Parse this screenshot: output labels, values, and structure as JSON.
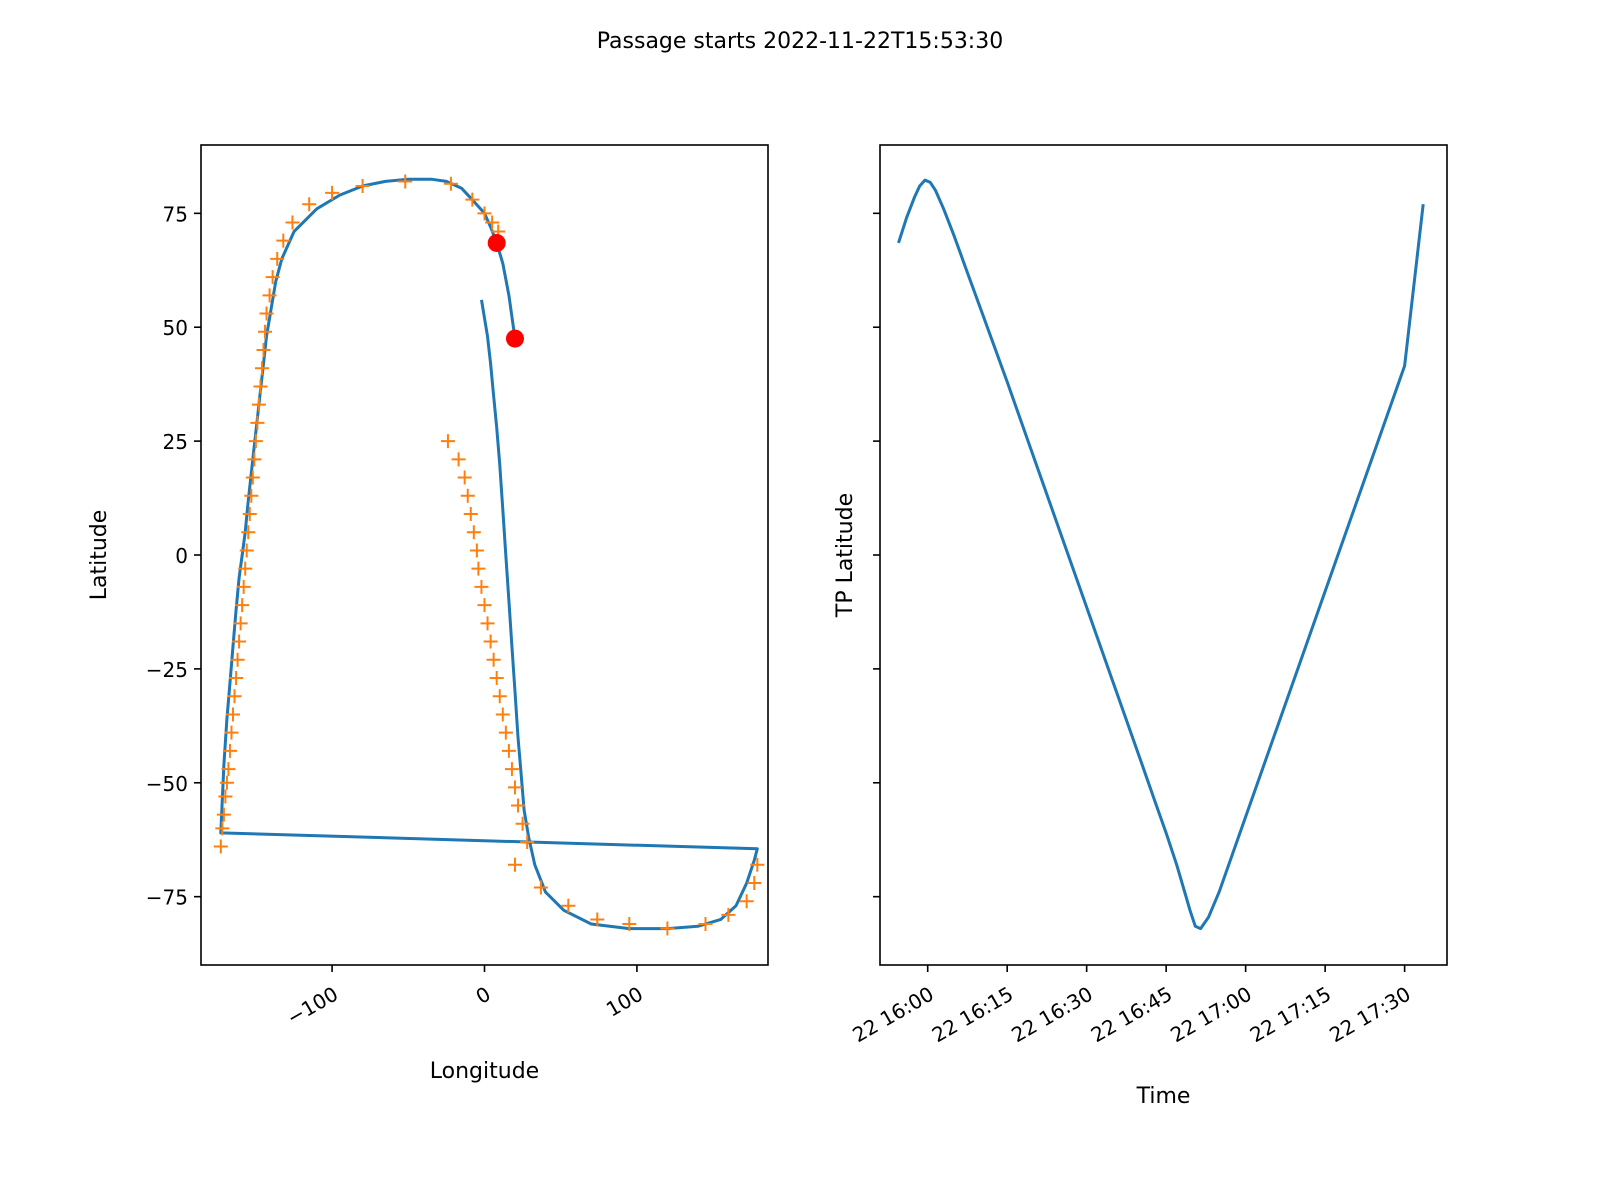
{
  "figure": {
    "title": "Passage starts 2022-11-22T15:53:30"
  },
  "colors": {
    "track_line": "#1f77b4",
    "track_markers": "#ff7f0e",
    "highlight_points": "#ff0000"
  },
  "chart_data": [
    {
      "type": "line",
      "xlabel": "Longitude",
      "ylabel": "Latitude",
      "xlim": [
        -186,
        186
      ],
      "ylim": [
        -90,
        90
      ],
      "xticks": [
        -100,
        0,
        100
      ],
      "xtick_labels": [
        "−100",
        "0",
        "100"
      ],
      "yticks": [
        -75,
        -50,
        -25,
        0,
        25,
        50,
        75
      ],
      "ytick_labels": [
        "−75",
        "−50",
        "−25",
        "0",
        "25",
        "50",
        "75"
      ],
      "grid": false,
      "series": [
        {
          "style": "line",
          "x": [
            20,
            16,
            12,
            8,
            4,
            0,
            -8,
            -15,
            -25,
            -35,
            -50,
            -65,
            -80,
            -95,
            -110,
            -125,
            -133,
            -137,
            -140,
            -143,
            -145,
            -147,
            -149,
            -151,
            -153,
            -155,
            -157,
            -159,
            -161,
            -163,
            -165,
            -167,
            -169,
            -171,
            -173,
            179,
            177,
            172,
            165,
            155,
            140,
            120,
            95,
            70,
            52,
            40,
            33,
            29,
            26,
            24,
            22,
            20,
            18,
            16,
            14,
            12,
            10,
            8,
            6,
            4,
            2,
            0,
            -2
          ],
          "y": [
            47.5,
            57,
            64,
            68.5,
            72,
            75,
            78,
            80.5,
            82,
            82.5,
            82.5,
            82,
            81,
            79,
            76,
            71,
            65,
            60,
            54,
            48,
            42,
            36,
            30,
            24,
            18,
            12,
            5,
            0,
            -5,
            -12,
            -20,
            -28,
            -36,
            -46,
            -61,
            -64.5,
            -67,
            -72,
            -77,
            -80,
            -81.5,
            -82,
            -82,
            -81,
            -78,
            -74,
            -68,
            -62,
            -56,
            -48,
            -40,
            -30,
            -20,
            -10,
            0,
            10,
            20,
            28,
            35,
            42,
            48,
            52,
            56
          ]
        },
        {
          "style": "markers",
          "x": [
            -173,
            -172,
            -171,
            -170,
            -169,
            -168,
            -167,
            -166,
            -165,
            -164,
            -163,
            -162,
            -161,
            -160,
            -159,
            -158,
            -157,
            -156,
            -155,
            -154,
            -153,
            -152,
            -151,
            -150,
            -149,
            -148,
            -147,
            -146,
            -145,
            -144,
            -143,
            -141,
            -139,
            -136,
            -132,
            -126,
            -115,
            -100,
            -80,
            -52,
            -22,
            -8,
            0,
            5,
            9,
            20,
            37,
            55,
            74,
            95,
            120,
            145,
            160,
            172,
            177,
            179,
            28,
            25,
            22,
            20,
            18,
            16,
            14,
            12,
            10,
            8,
            6,
            4,
            2,
            0,
            -2,
            -4,
            -5,
            -7,
            -9,
            -11,
            -13,
            -17,
            -24
          ],
          "y": [
            -64,
            -60,
            -57,
            -53,
            -50,
            -47,
            -43,
            -39,
            -35,
            -31,
            -27,
            -23,
            -19,
            -15,
            -11,
            -7,
            -3,
            1,
            5,
            9,
            13,
            17,
            21,
            25,
            29,
            33,
            37,
            41,
            45,
            49,
            53,
            57,
            61,
            65,
            69,
            73,
            77,
            79.5,
            81,
            82,
            81.5,
            78,
            75,
            73,
            71,
            -68,
            -73,
            -77,
            -80,
            -81,
            -82,
            -81,
            -79,
            -76,
            -72,
            -68,
            -63,
            -59,
            -55,
            -51,
            -47,
            -43,
            -39,
            -35,
            -31,
            -27,
            -23,
            -19,
            -15,
            -11,
            -7,
            -3,
            1,
            5,
            9,
            13,
            17,
            21,
            25
          ]
        },
        {
          "style": "points",
          "x": [
            8,
            20
          ],
          "y": [
            68.5,
            47.5
          ]
        }
      ]
    },
    {
      "type": "line",
      "xlabel": "Time",
      "ylabel": "TP Latitude",
      "xlim": [
        "2022-11-22T15:51:00",
        "2022-11-22T17:38:00"
      ],
      "ylim": [
        -90,
        90
      ],
      "xticks": [
        "2022-11-22T16:00:00",
        "2022-11-22T16:15:00",
        "2022-11-22T16:30:00",
        "2022-11-22T16:45:00",
        "2022-11-22T17:00:00",
        "2022-11-22T17:15:00",
        "2022-11-22T17:30:00"
      ],
      "xtick_labels": [
        "22 16:00",
        "22 16:15",
        "22 16:30",
        "22 16:45",
        "22 17:00",
        "22 17:15",
        "22 17:30"
      ],
      "yticks": [
        -75,
        -50,
        -25,
        0,
        25,
        50,
        75
      ],
      "ytick_labels_shown": false,
      "grid": false,
      "series": [
        {
          "style": "line",
          "x": [
            "2022-11-22T15:54:30",
            "2022-11-22T15:56:00",
            "2022-11-22T15:57:30",
            "2022-11-22T15:58:30",
            "2022-11-22T15:59:30",
            "2022-11-22T16:00:30",
            "2022-11-22T16:01:30",
            "2022-11-22T16:03:00",
            "2022-11-22T16:05:00",
            "2022-11-22T16:07:30",
            "2022-11-22T16:10:00",
            "2022-11-22T16:15:00",
            "2022-11-22T16:20:00",
            "2022-11-22T16:25:00",
            "2022-11-22T16:30:00",
            "2022-11-22T16:35:00",
            "2022-11-22T16:40:00",
            "2022-11-22T16:43:00",
            "2022-11-22T16:45:00",
            "2022-11-22T16:47:00",
            "2022-11-22T16:48:30",
            "2022-11-22T16:49:30",
            "2022-11-22T16:50:30",
            "2022-11-22T16:51:30",
            "2022-11-22T16:53:00",
            "2022-11-22T16:55:00",
            "2022-11-22T17:00:00",
            "2022-11-22T17:05:00",
            "2022-11-22T17:10:00",
            "2022-11-22T17:15:00",
            "2022-11-22T17:20:00",
            "2022-11-22T17:25:00",
            "2022-11-22T17:30:00",
            "2022-11-22T17:33:30"
          ],
          "y": [
            68.5,
            74,
            78.5,
            81,
            82.3,
            81.8,
            80,
            76,
            70,
            62,
            54,
            38,
            21.5,
            5,
            -11.5,
            -28,
            -44.5,
            -54.5,
            -61,
            -68,
            -74,
            -78,
            -81.5,
            -82,
            -79.5,
            -74,
            -57.5,
            -41,
            -24.5,
            -8,
            8.5,
            25,
            41.5,
            77
          ]
        }
      ]
    }
  ]
}
